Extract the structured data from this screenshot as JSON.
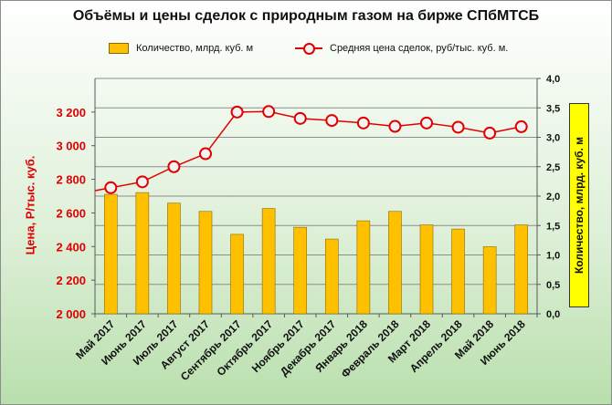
{
  "chart_data": {
    "type": "bar",
    "title": "Объёмы и цены сделок с природным газом на бирже СПбМТСБ",
    "categories": [
      "Май 2017",
      "Июнь 2017",
      "Июль 2017",
      "Август 2017",
      "Сентябрь 2017",
      "Октябрь 2017",
      "Ноябрь 2017",
      "Декабрь 2017",
      "Январь 2018",
      "Февраль 2018",
      "Март 2018",
      "Апрель 2018",
      "Май 2018",
      "Июнь 2018"
    ],
    "series": [
      {
        "name": "Количество,  млрд. куб. м",
        "type": "bar",
        "axis": "right",
        "color": "#ffc000",
        "values": [
          2.03,
          2.06,
          1.88,
          1.74,
          1.35,
          1.79,
          1.47,
          1.27,
          1.58,
          1.74,
          1.51,
          1.44,
          1.14,
          1.51
        ]
      },
      {
        "name": "Средняя цена сделок, руб/тыс. куб. м.",
        "type": "line",
        "axis": "left",
        "color": "#e00000",
        "values": [
          2750,
          2785,
          2875,
          2952,
          3200,
          3203,
          3162,
          3150,
          3135,
          3115,
          3135,
          3110,
          3075,
          3113
        ]
      }
    ],
    "y_left": {
      "label": "Цена, Р/тыс. куб.",
      "ylim": [
        2000,
        3400
      ],
      "ticks": [
        2000,
        2200,
        2400,
        2600,
        2800,
        3000,
        3200
      ],
      "tick_labels": [
        "2 000",
        "2 200",
        "2 400",
        "2 600",
        "2 800",
        "3 000",
        "3 200"
      ]
    },
    "y_right": {
      "label": "Количество, млрд. куб. м",
      "ylim": [
        0,
        4
      ],
      "ticks": [
        0,
        0.5,
        1,
        1.5,
        2,
        2.5,
        3,
        3.5,
        4
      ],
      "tick_labels": [
        "0,0",
        "0,5",
        "1,0",
        "1,5",
        "2,0",
        "2,5",
        "3,0",
        "3,5",
        "4,0"
      ]
    },
    "grid": true,
    "legend_position": "top"
  }
}
